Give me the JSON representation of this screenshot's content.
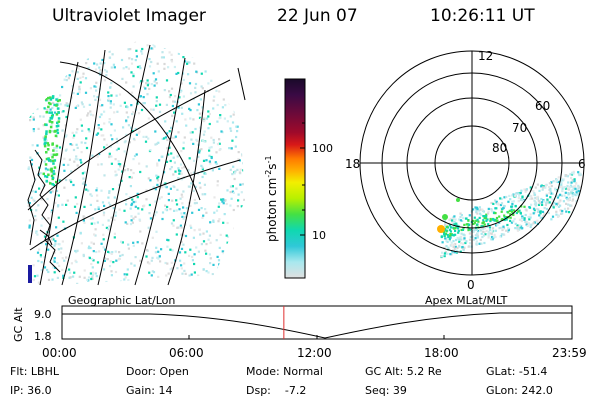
{
  "header": {
    "instrument": "Ultraviolet Imager",
    "date": "22 Jun 07",
    "time": "10:26:11 UT"
  },
  "left_panel": {
    "label": "Geographic Lat/Lon"
  },
  "right_panel": {
    "label": "Apex MLat/MLT",
    "mlt_labels": {
      "top": "12",
      "left": "18",
      "right": "6",
      "bottom": "0"
    },
    "lat_labels": [
      "60",
      "70",
      "80"
    ]
  },
  "colorbar": {
    "unit_label": "photon cm",
    "unit_sup1": "-2",
    "unit_mid": "s",
    "unit_sup2": "-1",
    "tick_labels": [
      "100",
      "10"
    ],
    "colors": [
      "#1a0a2a",
      "#3a0a44",
      "#6a0a3a",
      "#a00a2a",
      "#d81818",
      "#ff7a00",
      "#ffb000",
      "#f2ef00",
      "#b8f000",
      "#44e044",
      "#10d8b0",
      "#30c8d8",
      "#a8e8ee",
      "#e0e0e0"
    ]
  },
  "altitude_strip": {
    "y_axis_label": "GC Alt",
    "y_ticks": [
      "9.0",
      "1.8"
    ],
    "x_ticks": [
      "00:00",
      "06:00",
      "12:00",
      "18:00",
      "23:59"
    ],
    "current_time_fraction": 0.435
  },
  "info": {
    "row1": {
      "flt": "Flt: LBHL",
      "door": "Door: Open",
      "mode": "Mode: Normal",
      "gcalt": "GC Alt: 5.2 Re",
      "glat": "GLat: -51.4"
    },
    "row2": {
      "ip": "IP: 36.0",
      "gain": "Gain: 14",
      "dsp": "Dsp:    -7.2",
      "seq": "Seq: 39",
      "glon": "GLon: 242.0"
    }
  }
}
